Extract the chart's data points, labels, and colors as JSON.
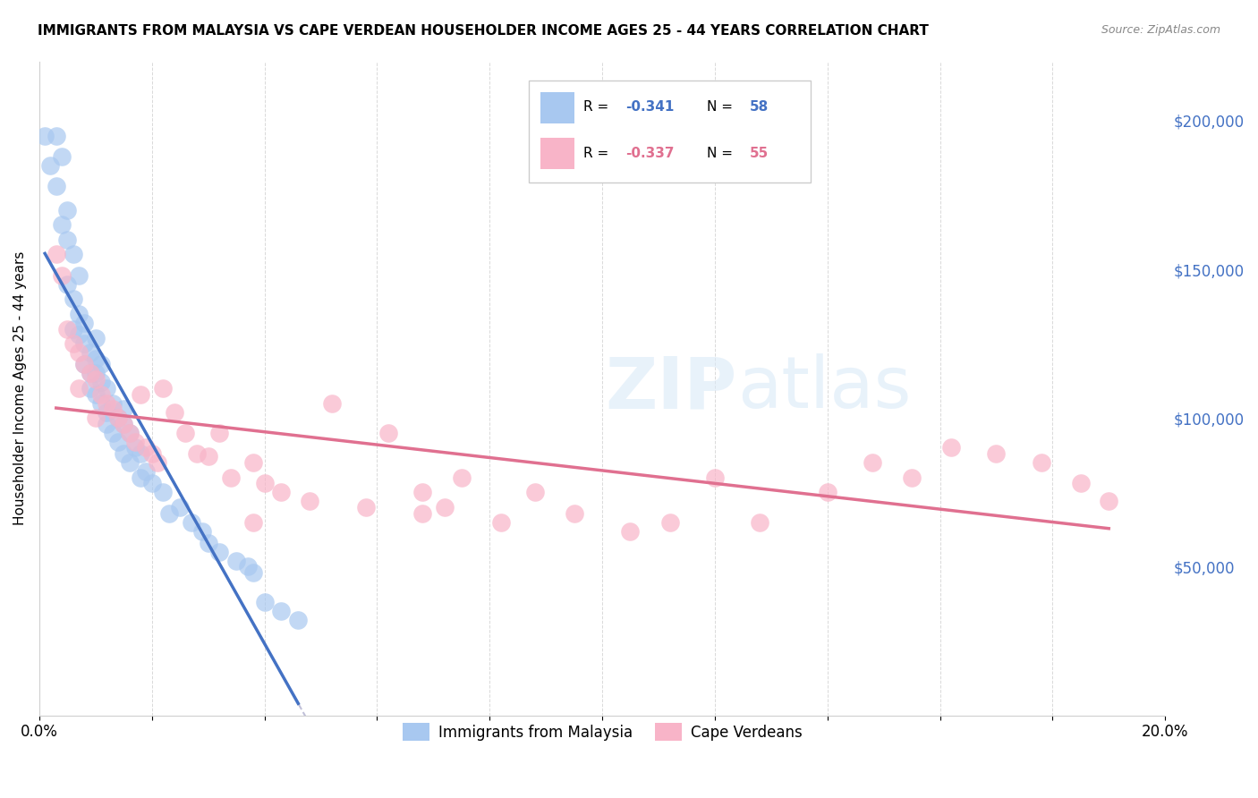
{
  "title": "IMMIGRANTS FROM MALAYSIA VS CAPE VERDEAN HOUSEHOLDER INCOME AGES 25 - 44 YEARS CORRELATION CHART",
  "source": "Source: ZipAtlas.com",
  "ylabel": "Householder Income Ages 25 - 44 years",
  "xlim": [
    0.0,
    0.2
  ],
  "ylim": [
    0,
    220000
  ],
  "yticks_right": [
    50000,
    100000,
    150000,
    200000
  ],
  "ytick_labels_right": [
    "$50,000",
    "$100,000",
    "$150,000",
    "$200,000"
  ],
  "color_malaysia": "#a8c8f0",
  "color_cape_verdean": "#f8b4c8",
  "color_line_malaysia": "#4472c4",
  "color_line_cape_verdean": "#e07090",
  "color_dashed_line": "#c0c0d8",
  "watermark": "ZIPatlas",
  "malaysia_x": [
    0.001,
    0.002,
    0.003,
    0.003,
    0.004,
    0.004,
    0.005,
    0.005,
    0.005,
    0.006,
    0.006,
    0.006,
    0.007,
    0.007,
    0.007,
    0.008,
    0.008,
    0.008,
    0.009,
    0.009,
    0.009,
    0.01,
    0.01,
    0.01,
    0.01,
    0.011,
    0.011,
    0.011,
    0.012,
    0.012,
    0.012,
    0.013,
    0.013,
    0.014,
    0.014,
    0.015,
    0.015,
    0.015,
    0.016,
    0.016,
    0.017,
    0.018,
    0.018,
    0.019,
    0.02,
    0.022,
    0.023,
    0.025,
    0.027,
    0.029,
    0.03,
    0.032,
    0.035,
    0.037,
    0.038,
    0.04,
    0.043,
    0.046
  ],
  "malaysia_y": [
    195000,
    185000,
    178000,
    195000,
    188000,
    165000,
    170000,
    160000,
    145000,
    140000,
    130000,
    155000,
    135000,
    128000,
    148000,
    125000,
    132000,
    118000,
    122000,
    115000,
    110000,
    127000,
    120000,
    108000,
    115000,
    112000,
    105000,
    118000,
    102000,
    110000,
    98000,
    105000,
    95000,
    100000,
    92000,
    98000,
    88000,
    103000,
    95000,
    85000,
    90000,
    80000,
    88000,
    82000,
    78000,
    75000,
    68000,
    70000,
    65000,
    62000,
    58000,
    55000,
    52000,
    50000,
    48000,
    38000,
    35000,
    32000
  ],
  "cape_verdean_x": [
    0.003,
    0.004,
    0.005,
    0.006,
    0.007,
    0.007,
    0.008,
    0.009,
    0.01,
    0.01,
    0.011,
    0.012,
    0.013,
    0.014,
    0.015,
    0.016,
    0.017,
    0.018,
    0.019,
    0.02,
    0.021,
    0.022,
    0.024,
    0.026,
    0.028,
    0.03,
    0.032,
    0.034,
    0.038,
    0.04,
    0.043,
    0.048,
    0.052,
    0.058,
    0.062,
    0.068,
    0.075,
    0.082,
    0.088,
    0.095,
    0.105,
    0.112,
    0.12,
    0.128,
    0.14,
    0.148,
    0.155,
    0.162,
    0.17,
    0.178,
    0.185,
    0.19,
    0.038,
    0.068,
    0.072
  ],
  "cape_verdean_y": [
    155000,
    148000,
    130000,
    125000,
    122000,
    110000,
    118000,
    115000,
    113000,
    100000,
    108000,
    105000,
    103000,
    100000,
    98000,
    95000,
    92000,
    108000,
    90000,
    88000,
    85000,
    110000,
    102000,
    95000,
    88000,
    87000,
    95000,
    80000,
    85000,
    78000,
    75000,
    72000,
    105000,
    70000,
    95000,
    68000,
    80000,
    65000,
    75000,
    68000,
    62000,
    65000,
    80000,
    65000,
    75000,
    85000,
    80000,
    90000,
    88000,
    85000,
    78000,
    72000,
    65000,
    75000,
    70000
  ]
}
